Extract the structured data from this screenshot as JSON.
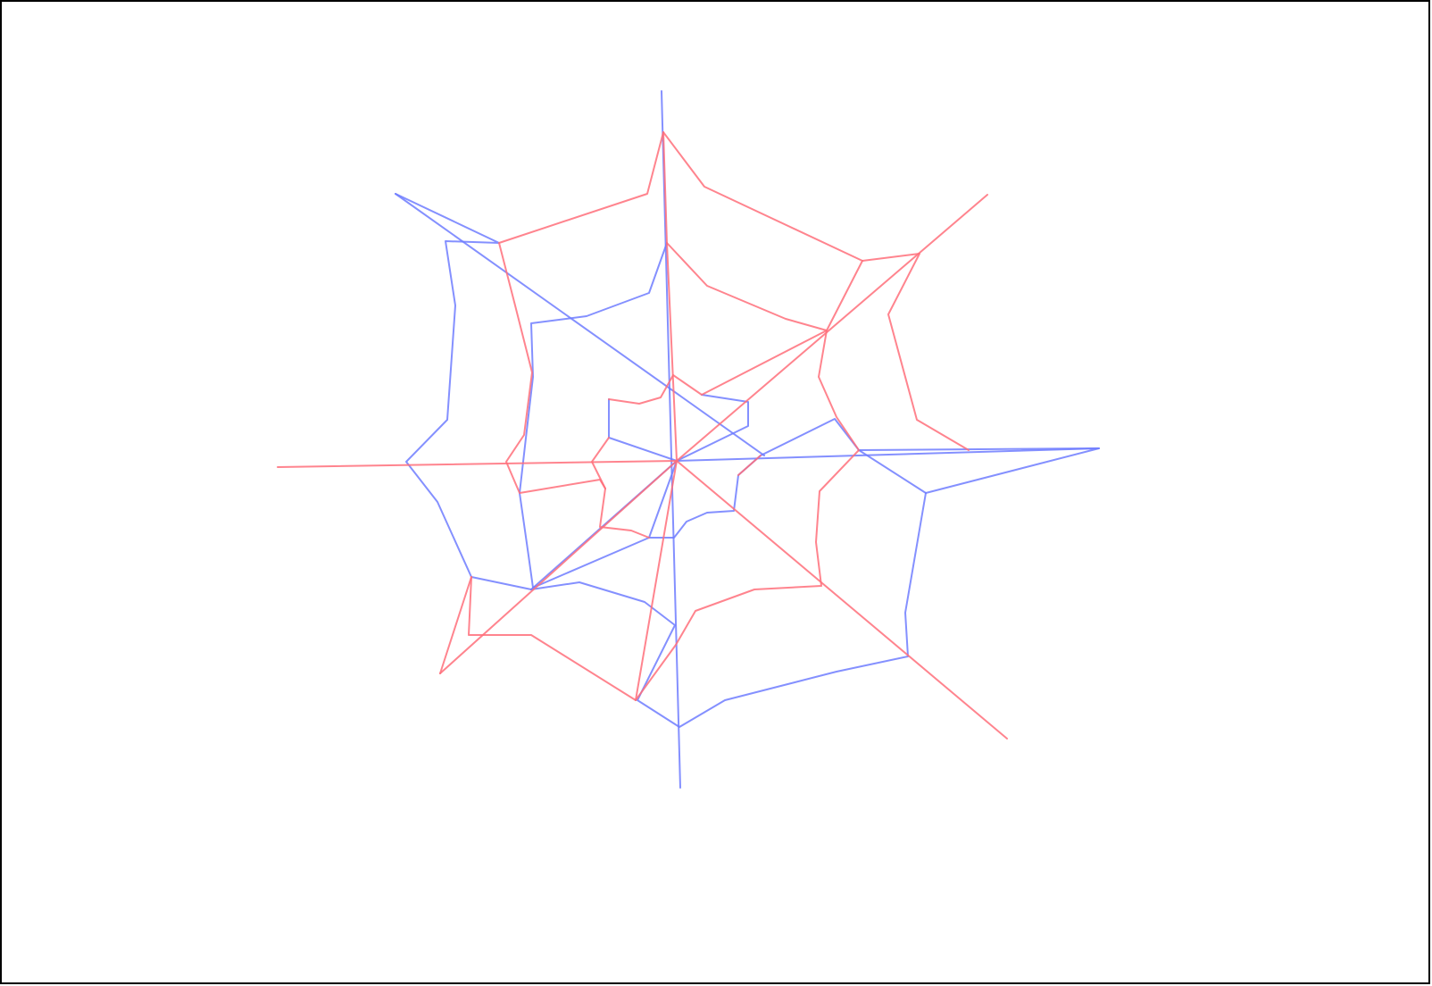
{
  "diagram": {
    "type": "spider-web-network-overlay",
    "background": "#ffffff",
    "border_color": "#000000",
    "layers": [
      {
        "id": "blue-web",
        "color": "#6f7dff",
        "opacity": 0.85
      },
      {
        "id": "red-web",
        "color": "#ff6f7a",
        "opacity": 0.85
      }
    ],
    "hub_label": "",
    "legend": []
  }
}
